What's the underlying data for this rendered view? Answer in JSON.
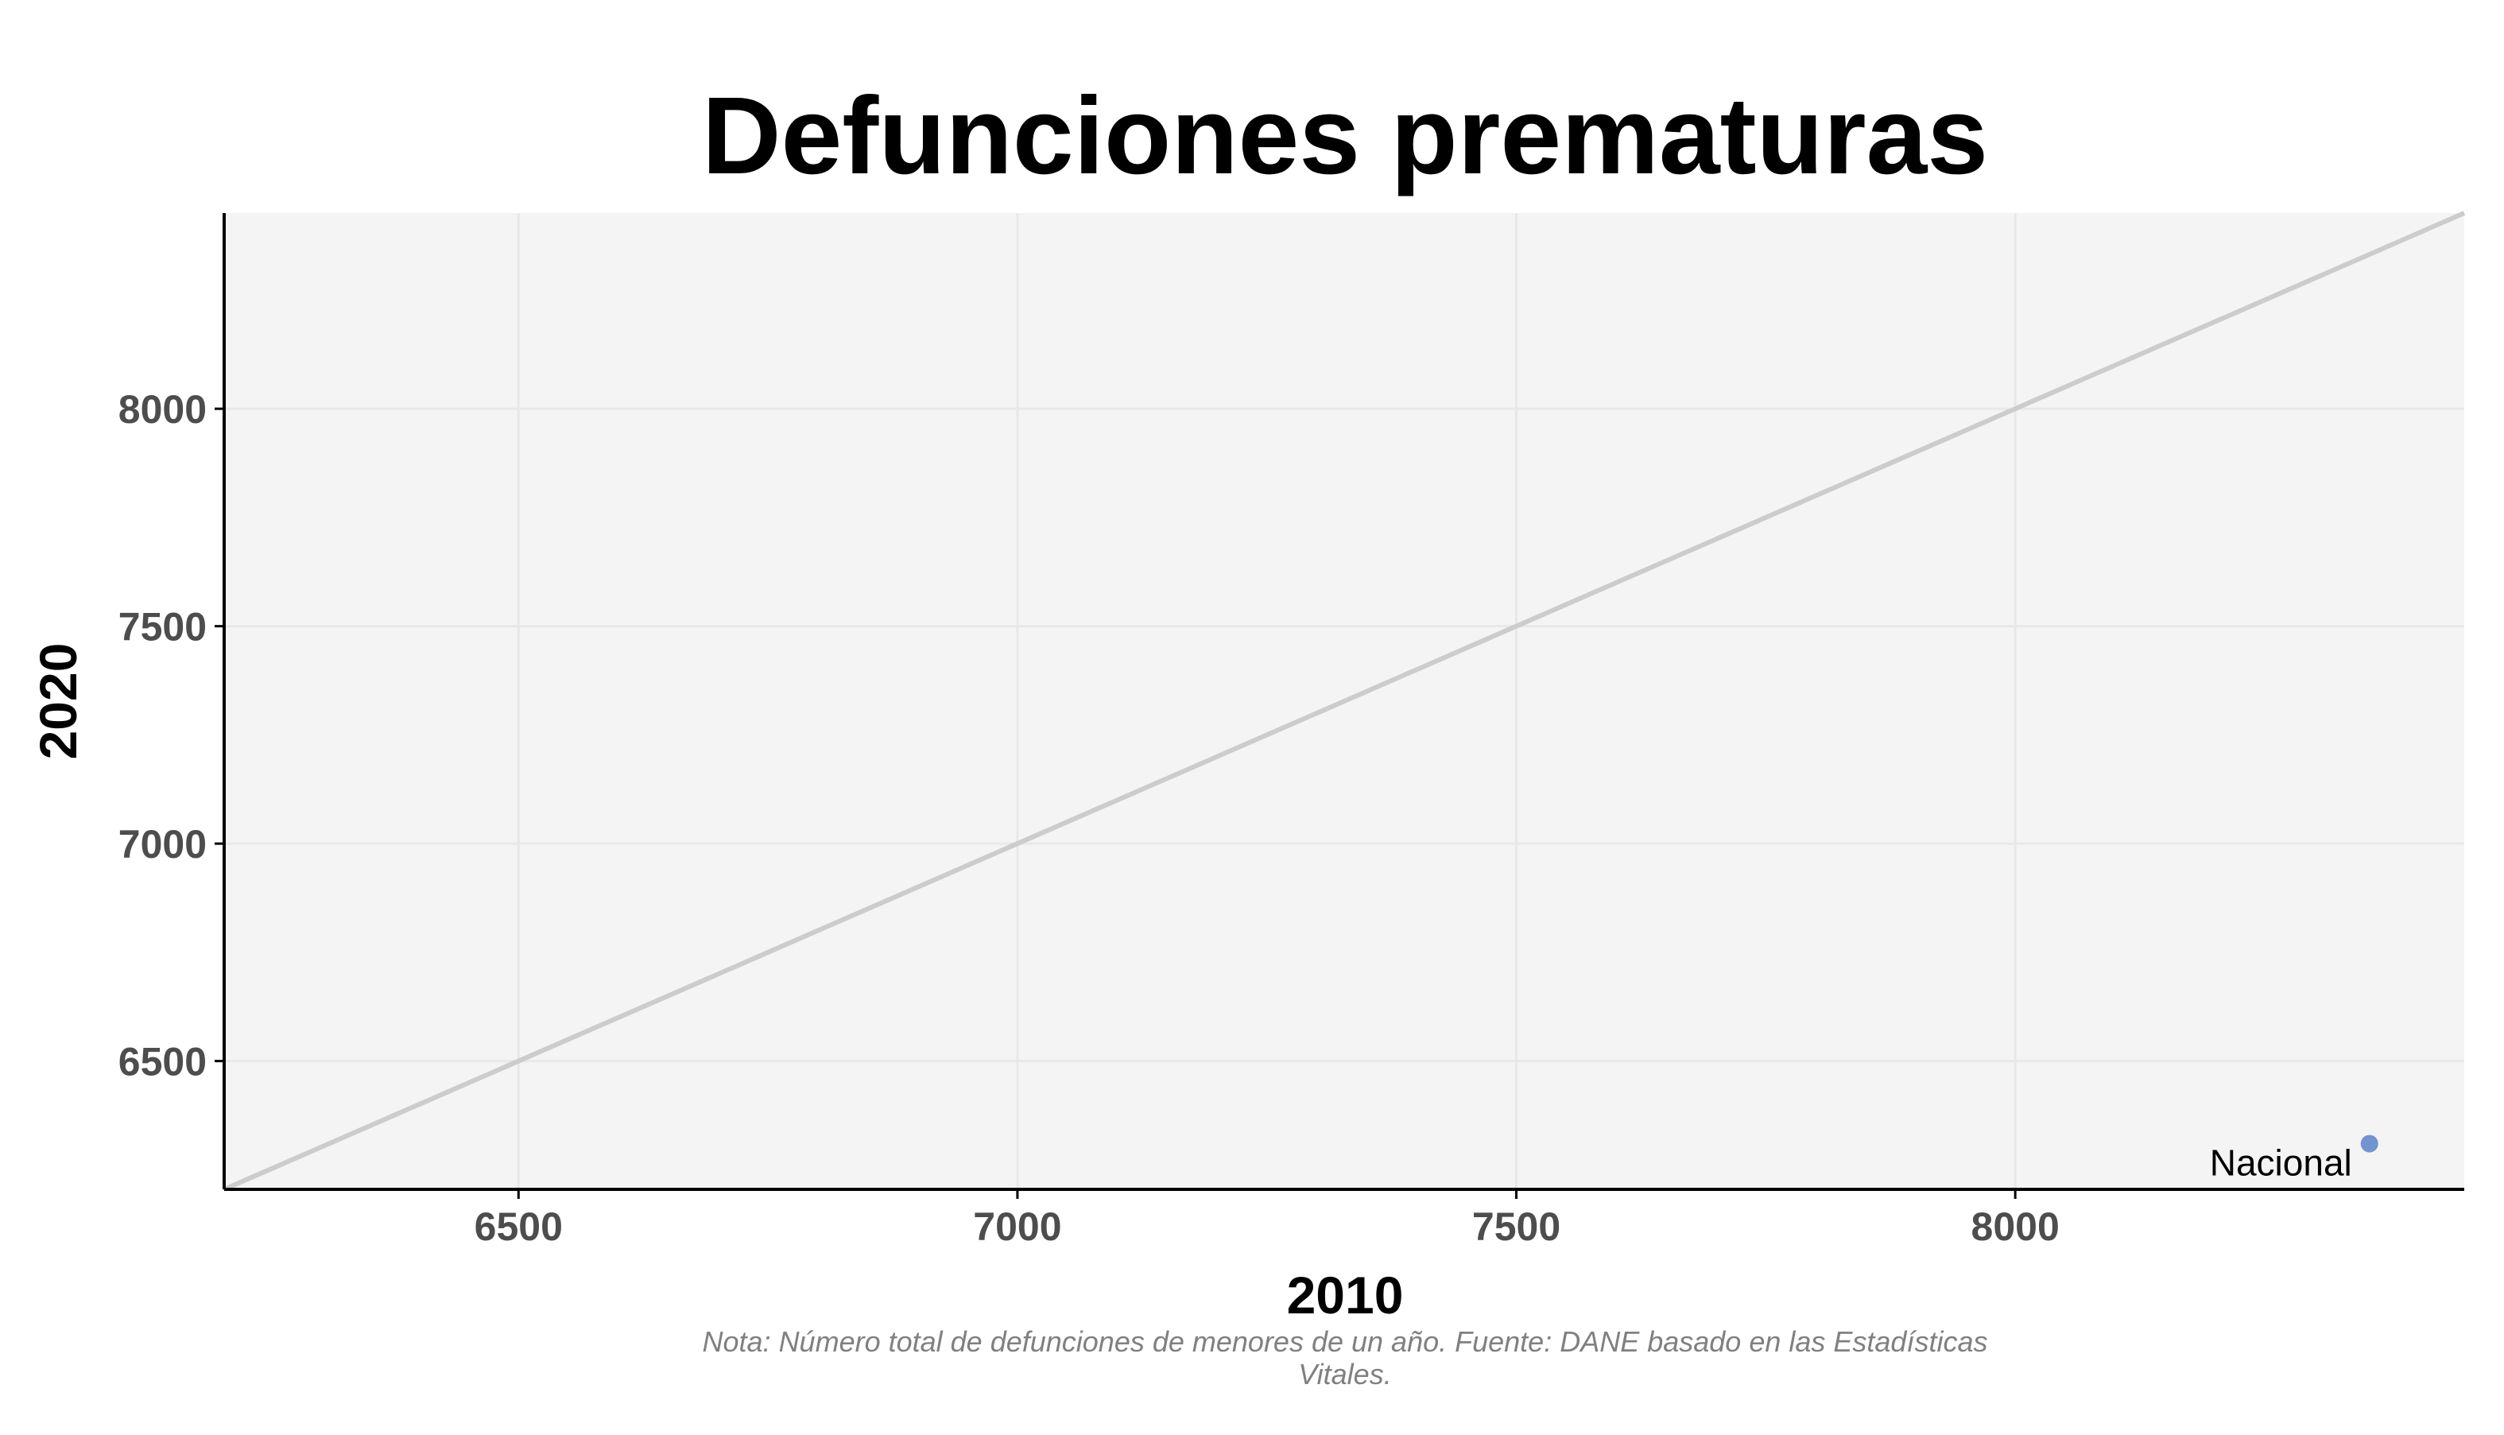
{
  "chart_data": {
    "type": "scatter",
    "title": "Defunciones prematuras",
    "xlabel": "2010",
    "ylabel": "2020",
    "xlim": [
      6205,
      8450
    ],
    "ylim": [
      6205,
      8450
    ],
    "x_ticks": [
      6500,
      7000,
      7500,
      8000
    ],
    "y_ticks": [
      6500,
      7000,
      7500,
      8000
    ],
    "grid": true,
    "reference_line": "y = x",
    "points": [
      {
        "label": "Nacional",
        "x": 8355,
        "y": 6310
      }
    ],
    "note": [
      "Nota: Número total de defunciones de menores de un año. Fuente: DANE basado en las Estadísticas",
      "Vitales."
    ]
  },
  "colors": {
    "panel_background": "#f4f4f4",
    "grid": "#e8e8e8",
    "reference_line": "#cccccc",
    "point": "#7195d1",
    "axis_line": "#000000",
    "tick_text": "#4d4d4d",
    "note_text": "#808080"
  }
}
